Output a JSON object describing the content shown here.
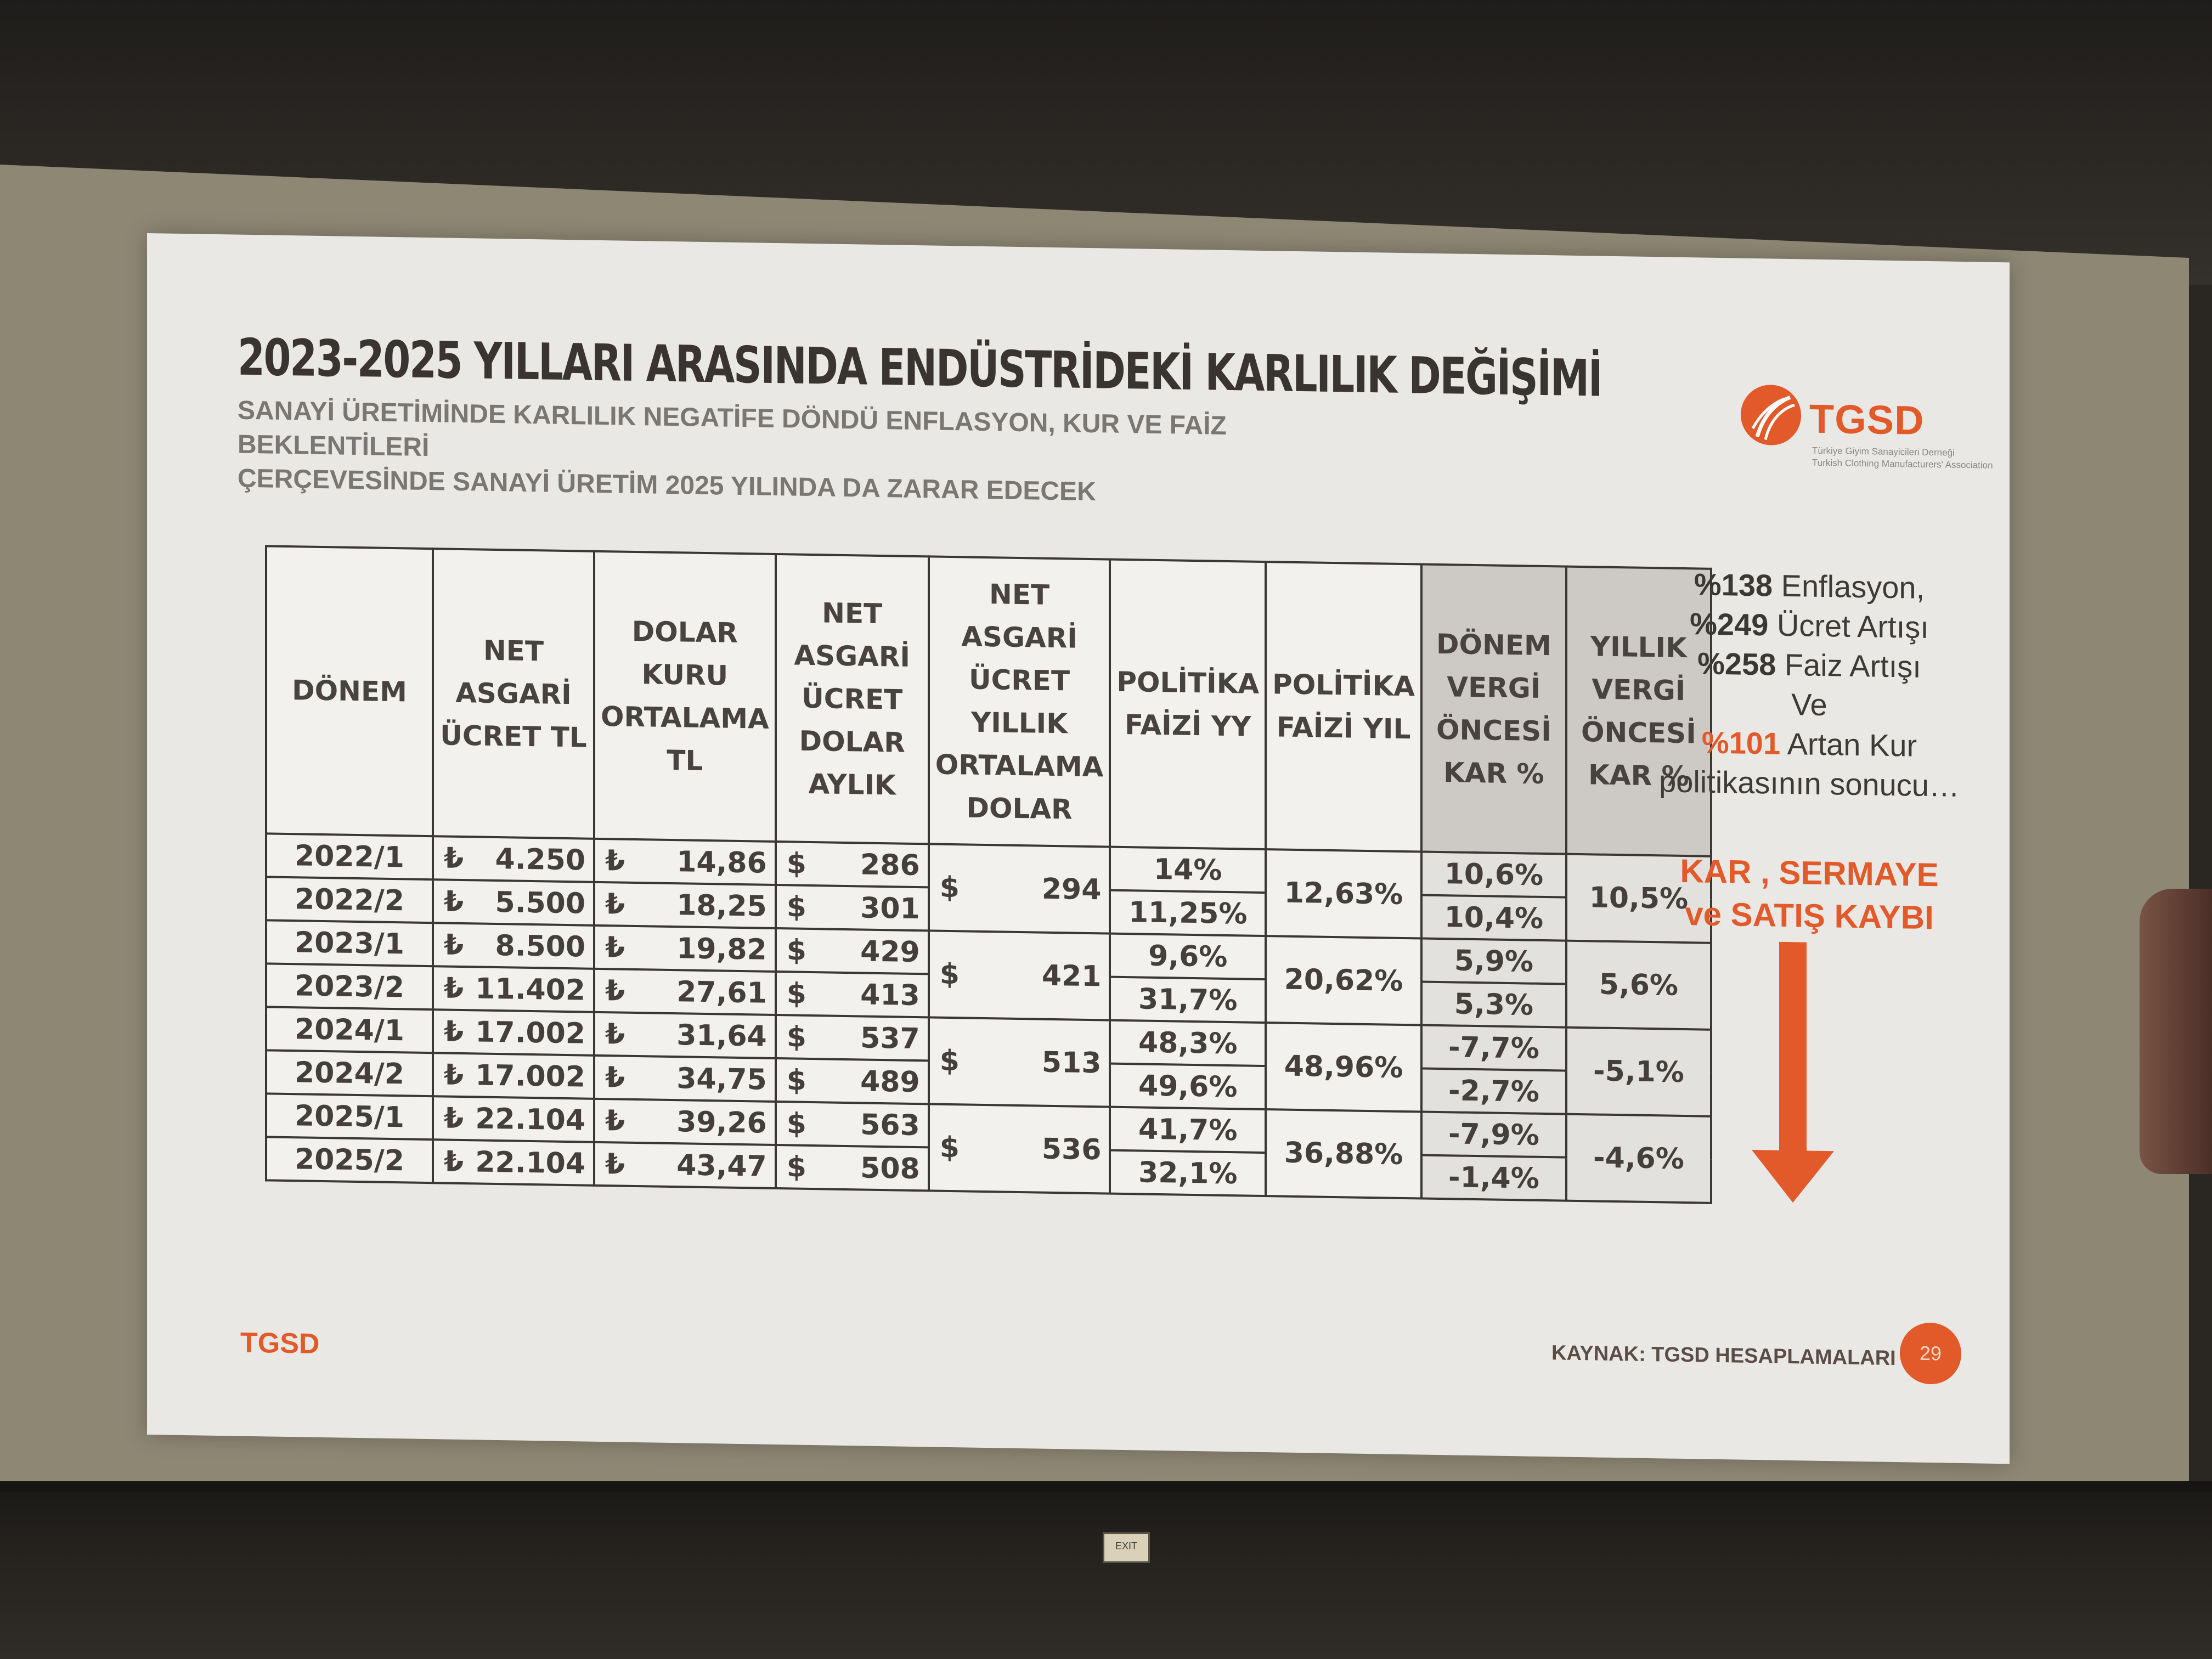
{
  "slide": {
    "title": "2023-2025 YILLARI ARASINDA ENDÜSTRİDEKİ KARLILIK DEĞİŞİMİ",
    "subtitle_line1": "SANAYİ ÜRETİMİNDE KARLILIK NEGATİFE DÖNDÜ ENFLASYON, KUR VE FAİZ BEKLENTİLERİ",
    "subtitle_line2": "ÇERÇEVESİNDE SANAYİ ÜRETİM 2025 YILINDA DA ZARAR EDECEK",
    "logo_text": "TGSD",
    "logo_sub1": "Türkiye Giyim Sanayicileri Derneği",
    "logo_sub2": "Turkish Clothing Manufacturers' Association",
    "footer_logo": "TGSD",
    "source": "KAYNAK: TGSD HESAPLAMALARI",
    "page_number": "29",
    "colors": {
      "accent": "#e2592a",
      "text": "#3a3431",
      "shade": "#cdcac6"
    }
  },
  "table": {
    "headers": {
      "donem": "DÖNEM",
      "net_asgari": "NET ASGARİ ÜCRET TL",
      "dolar_kuru": "DOLAR KURU ORTALAMA TL",
      "net_dolar_aylik": "NET ASGARİ ÜCRET DOLAR AYLIK",
      "net_yillik": "NET ASGARİ ÜCRET YILLIK ORTALAMA DOLAR",
      "faiz_yy": "POLİTİKA FAİZİ YY",
      "faiz_yil": "POLİTİKA FAİZİ YIL",
      "donem_kar": "DÖNEM VERGİ ÖNCESİ KAR %",
      "yillik_kar": "YILLIK VERGİ ÖNCESİ KAR %"
    },
    "tl_symbol": "₺",
    "usd_symbol": "$",
    "rows": [
      {
        "donem": "2022/1",
        "asgari": "4.250",
        "kur": "14,86",
        "dolar": "286",
        "faiz_yy": "14%",
        "donem_kar": "10,6%"
      },
      {
        "donem": "2022/2",
        "asgari": "5.500",
        "kur": "18,25",
        "dolar": "301",
        "faiz_yy": "11,25%",
        "donem_kar": "10,4%"
      },
      {
        "donem": "2023/1",
        "asgari": "8.500",
        "kur": "19,82",
        "dolar": "429",
        "faiz_yy": "9,6%",
        "donem_kar": "5,9%"
      },
      {
        "donem": "2023/2",
        "asgari": "11.402",
        "kur": "27,61",
        "dolar": "413",
        "faiz_yy": "31,7%",
        "donem_kar": "5,3%"
      },
      {
        "donem": "2024/1",
        "asgari": "17.002",
        "kur": "31,64",
        "dolar": "537",
        "faiz_yy": "48,3%",
        "donem_kar": "-7,7%"
      },
      {
        "donem": "2024/2",
        "asgari": "17.002",
        "kur": "34,75",
        "dolar": "489",
        "faiz_yy": "49,6%",
        "donem_kar": "-2,7%"
      },
      {
        "donem": "2025/1",
        "asgari": "22.104",
        "kur": "39,26",
        "dolar": "563",
        "faiz_yy": "41,7%",
        "donem_kar": "-7,9%"
      },
      {
        "donem": "2025/2",
        "asgari": "22.104",
        "kur": "43,47",
        "dolar": "508",
        "faiz_yy": "32,1%",
        "donem_kar": "-1,4%"
      }
    ],
    "years": [
      {
        "yillik_dolar": "294",
        "faiz_yil": "12,63%",
        "yillik_kar": "10,5%"
      },
      {
        "yillik_dolar": "421",
        "faiz_yil": "20,62%",
        "yillik_kar": "5,6%"
      },
      {
        "yillik_dolar": "513",
        "faiz_yil": "48,96%",
        "yillik_kar": "-5,1%"
      },
      {
        "yillik_dolar": "536",
        "faiz_yil": "36,88%",
        "yillik_kar": "-4,6%"
      }
    ]
  },
  "side": {
    "l1_pct": "%138",
    "l1_txt": "Enflasyon,",
    "l2_pct": "%249",
    "l2_txt": "Ücret Artışı",
    "l3_pct": "%258",
    "l3_txt": "Faiz Artışı",
    "l4": "Ve",
    "l5_pct": "%101",
    "l5_txt": "Artan Kur",
    "l6": "politikasının sonucu…",
    "kaybi1": "KAR , SERMAYE",
    "kaybi2": "ve SATIŞ KAYBI"
  },
  "room": {
    "exit_sign": "EXIT"
  }
}
